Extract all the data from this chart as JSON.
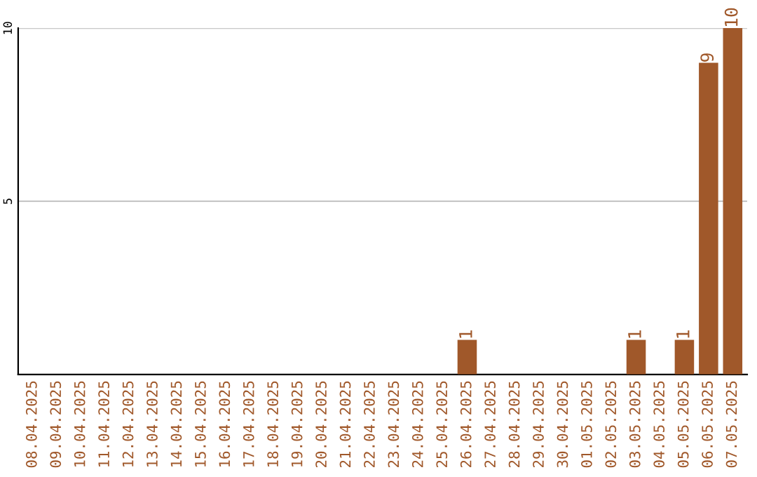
{
  "chart_data": {
    "type": "bar",
    "categories": [
      "08.04.2025",
      "09.04.2025",
      "10.04.2025",
      "11.04.2025",
      "12.04.2025",
      "13.04.2025",
      "14.04.2025",
      "15.04.2025",
      "16.04.2025",
      "17.04.2025",
      "18.04.2025",
      "19.04.2025",
      "20.04.2025",
      "21.04.2025",
      "22.04.2025",
      "23.04.2025",
      "24.04.2025",
      "25.04.2025",
      "26.04.2025",
      "27.04.2025",
      "28.04.2025",
      "29.04.2025",
      "30.04.2025",
      "01.05.2025",
      "02.05.2025",
      "03.05.2025",
      "04.05.2025",
      "05.05.2025",
      "06.05.2025",
      "07.05.2025"
    ],
    "values": [
      0,
      0,
      0,
      0,
      0,
      0,
      0,
      0,
      0,
      0,
      0,
      0,
      0,
      0,
      0,
      0,
      0,
      0,
      1,
      0,
      0,
      0,
      0,
      0,
      0,
      1,
      0,
      1,
      9,
      10
    ],
    "value_labels": [
      null,
      null,
      null,
      null,
      null,
      null,
      null,
      null,
      null,
      null,
      null,
      null,
      null,
      null,
      null,
      null,
      null,
      null,
      "1",
      null,
      null,
      null,
      null,
      null,
      null,
      "1",
      null,
      "1",
      "9",
      "10"
    ],
    "color": "#a0582a",
    "ylim": [
      0,
      10
    ],
    "yticks": [
      5,
      10
    ],
    "grid": "y"
  }
}
